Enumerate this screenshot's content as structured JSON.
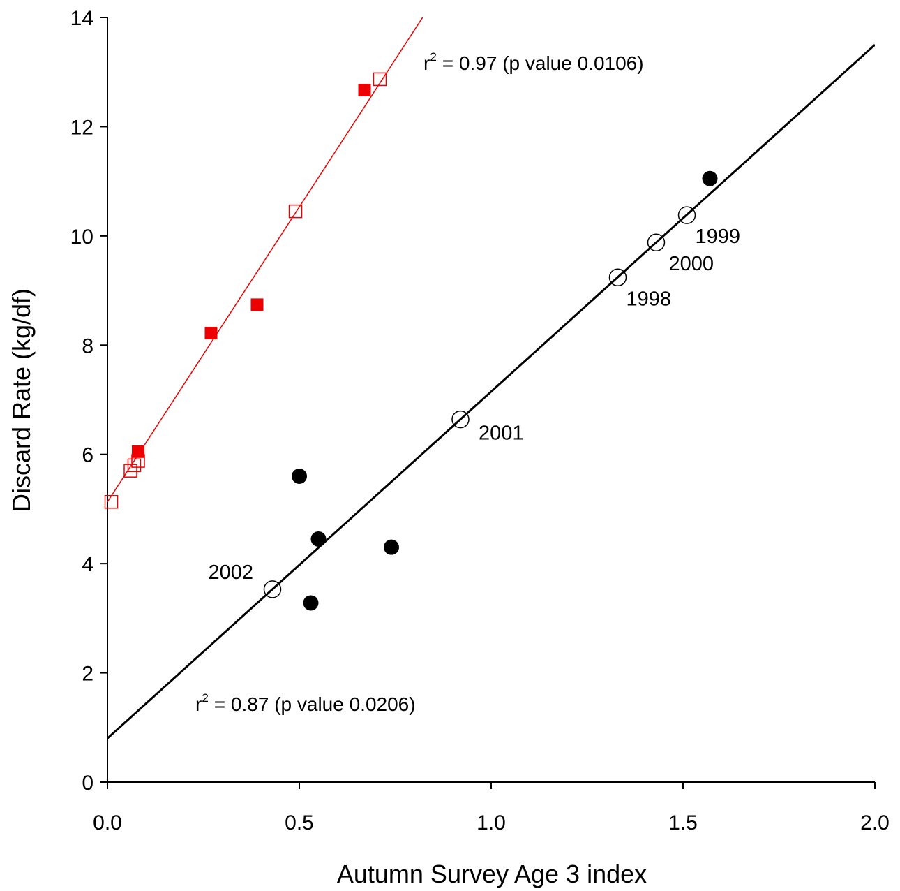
{
  "chart_data": {
    "type": "scatter",
    "title": "",
    "xlabel": "Autumn Survey Age 3 index",
    "ylabel": "Discard Rate (kg/df)",
    "xlim": [
      0,
      2
    ],
    "ylim": [
      0,
      14
    ],
    "x_ticks": [
      "0.0",
      "0.5",
      "1.0",
      "1.5",
      "2.0"
    ],
    "y_ticks": [
      "0",
      "2",
      "4",
      "6",
      "8",
      "10",
      "12",
      "14"
    ],
    "grid": false,
    "colors": {
      "red": "#ee0000",
      "black": "#000000"
    },
    "series": [
      {
        "marker": "filled-square",
        "color": "#ee0000",
        "points": [
          {
            "x": 0.08,
            "y": 6.05
          },
          {
            "x": 0.27,
            "y": 8.22
          },
          {
            "x": 0.39,
            "y": 8.74
          },
          {
            "x": 0.67,
            "y": 12.67
          }
        ]
      },
      {
        "marker": "open-square",
        "color": "#ee0000",
        "points": [
          {
            "x": 0.01,
            "y": 5.13
          },
          {
            "x": 0.06,
            "y": 5.7
          },
          {
            "x": 0.07,
            "y": 5.8
          },
          {
            "x": 0.08,
            "y": 5.88
          },
          {
            "x": 0.49,
            "y": 10.45
          },
          {
            "x": 0.71,
            "y": 12.87
          }
        ]
      },
      {
        "marker": "filled-circle",
        "color": "#000000",
        "points": [
          {
            "x": 0.5,
            "y": 5.6
          },
          {
            "x": 0.55,
            "y": 4.45
          },
          {
            "x": 0.53,
            "y": 3.28
          },
          {
            "x": 0.74,
            "y": 4.3
          },
          {
            "x": 1.57,
            "y": 11.05
          }
        ]
      },
      {
        "marker": "open-circle",
        "color": "#000000",
        "points": [
          {
            "x": 0.43,
            "y": 3.53,
            "label": "2002"
          },
          {
            "x": 0.92,
            "y": 6.64,
            "label": "2001"
          },
          {
            "x": 1.33,
            "y": 9.24,
            "label": "1998"
          },
          {
            "x": 1.43,
            "y": 9.88,
            "label": "2000"
          },
          {
            "x": 1.51,
            "y": 10.38,
            "label": "1999"
          }
        ]
      }
    ],
    "fit_lines": [
      {
        "color": "#ee0000",
        "intercept": 5.13,
        "slope": 10.8,
        "r2_text": "= 0.97 (p value 0.0106)"
      },
      {
        "color": "#000000",
        "intercept": 0.8,
        "slope": 6.35,
        "r2_text": "= 0.87 (p value 0.0206)"
      }
    ],
    "annotation_prefix": "r",
    "annotation_sup": "2"
  }
}
